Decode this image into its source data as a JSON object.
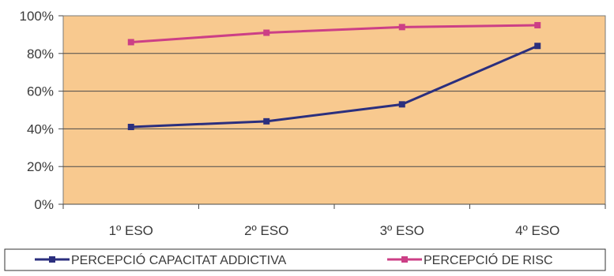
{
  "chart_data": {
    "type": "line",
    "categories": [
      "1º ESO",
      "2º ESO",
      "3º ESO",
      "4º ESO"
    ],
    "series": [
      {
        "name": "PERCEPCIÓ CAPACITAT ADDICTIVA",
        "values": [
          41,
          44,
          53,
          84
        ],
        "color": "#2b2f7e"
      },
      {
        "name": "PERCEPCIÓ DE RISC",
        "values": [
          86,
          91,
          94,
          95
        ],
        "color": "#cc3f86"
      }
    ],
    "y_ticks": [
      "0%",
      "20%",
      "40%",
      "60%",
      "80%",
      "100%"
    ],
    "ylim": [
      0,
      100
    ],
    "grid": true,
    "legend_position": "bottom",
    "plot_background": "#f8c98f",
    "title": "",
    "xlabel": "",
    "ylabel": ""
  }
}
